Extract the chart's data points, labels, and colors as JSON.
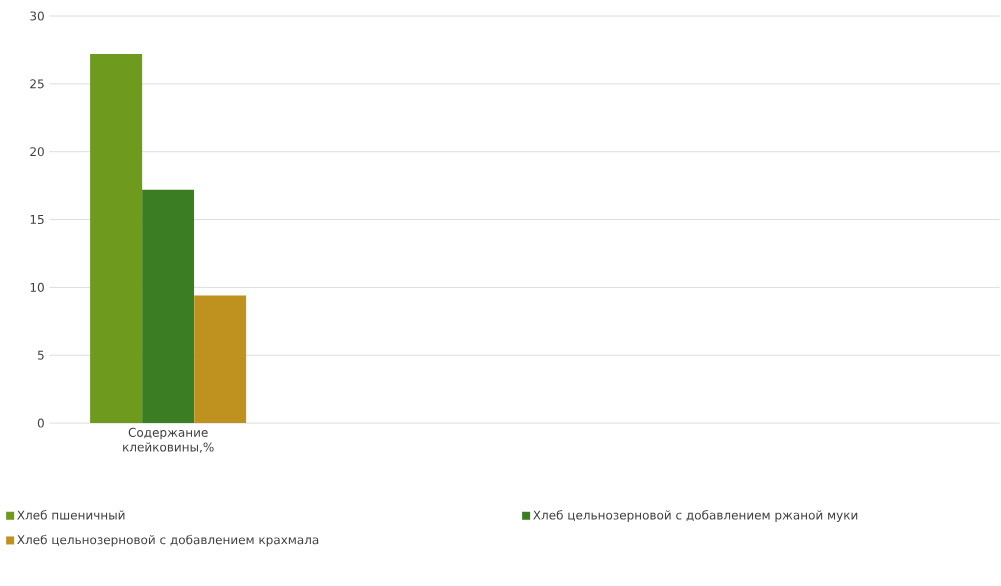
{
  "chart_data": {
    "type": "bar",
    "categories": [
      "Содержание клейковины,%",
      null,
      null,
      null
    ],
    "series": [
      {
        "name": "Хлеб пшеничный",
        "color": "#6e9a1e",
        "values": [
          27.2,
          null,
          null,
          null
        ]
      },
      {
        "name": "Хлеб цельнозерновой с добавлением ржаной муки",
        "color": "#3b7d23",
        "values": [
          17.2,
          null,
          null,
          null
        ]
      },
      {
        "name": "Хлеб цельнозерновой с добавлением крахмала",
        "color": "#bf9220",
        "values": [
          9.4,
          null,
          null,
          null
        ]
      }
    ],
    "ylim": [
      0,
      30
    ],
    "yticks": [
      0,
      5,
      10,
      15,
      20,
      25,
      30
    ],
    "grid": "y",
    "legend": "bottom"
  }
}
